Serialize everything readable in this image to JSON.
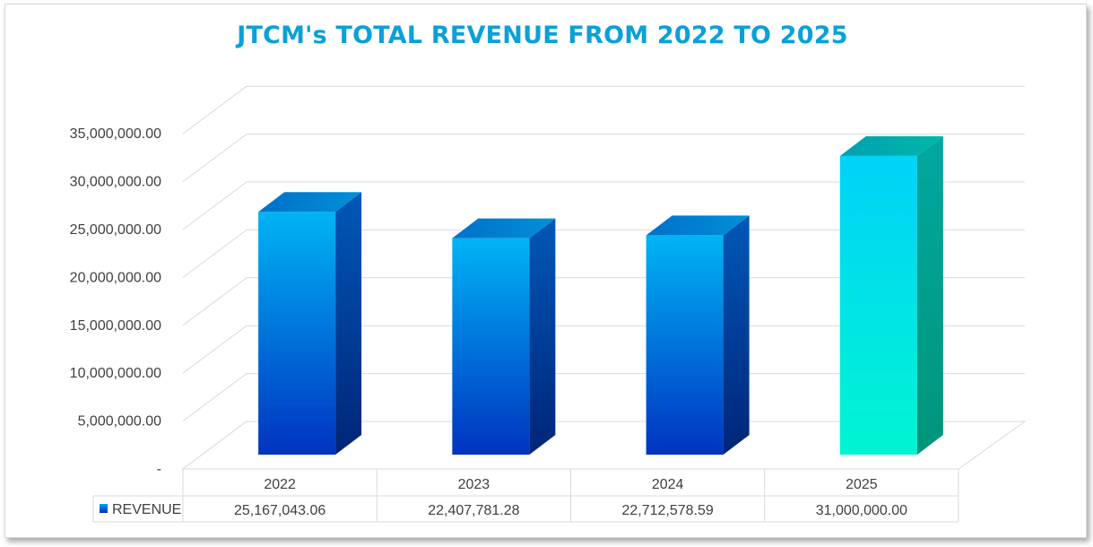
{
  "chart_data": {
    "type": "bar",
    "title": "JTCM's TOTAL REVENUE FROM 2022 TO 2025",
    "categories": [
      "2022",
      "2023",
      "2024",
      "2025"
    ],
    "series": [
      {
        "name": "REVENUE",
        "values": [
          25167043.06,
          22407781.28,
          22712578.59,
          31000000.0
        ],
        "value_labels": [
          "25,167,043.06",
          "22,407,781.28",
          "22,712,578.59",
          "31,000,000.00"
        ]
      }
    ],
    "ylim": [
      0,
      35000000
    ],
    "ytick_labels": [
      "-",
      "5,000,000.00",
      "10,000,000.00",
      "15,000,000.00",
      "20,000,000.00",
      "25,000,000.00",
      "30,000,000.00",
      "35,000,000.00"
    ],
    "grid": true,
    "legend": "data-table",
    "colors": {
      "title": "#0aa0d8",
      "bar_front_top": "#00b4f5",
      "bar_front_bottom": "#0033c0",
      "bar_side": "#002d85",
      "highlight_front_top": "#00d2f8",
      "highlight_front_bottom": "#00f5d2",
      "highlight_side": "#009c88",
      "legend_key": "#0058d0"
    }
  }
}
